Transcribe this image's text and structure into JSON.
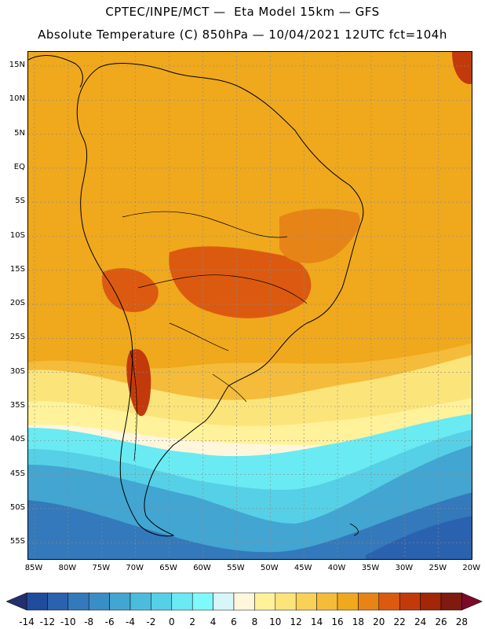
{
  "header": {
    "line1": "CPTEC/INPE/MCT —  Eta Model 15km — GFS",
    "line2": "Absolute Temperature (C) 850hPa — 10/04/2021 12UTC fct=104h"
  },
  "map": {
    "lat_labels": [
      "15N",
      "10N",
      "5N",
      "EQ",
      "5S",
      "10S",
      "15S",
      "20S",
      "25S",
      "30S",
      "35S",
      "40S",
      "45S",
      "50S",
      "55S"
    ],
    "lon_labels": [
      "85W",
      "80W",
      "75W",
      "70W",
      "65W",
      "60W",
      "55W",
      "50W",
      "45W",
      "40W",
      "35W",
      "30W",
      "25W",
      "20W"
    ],
    "lat_range": [
      -58,
      16.5
    ],
    "lon_range": [
      -85.5,
      -19.5
    ]
  },
  "colorbar": {
    "labels": [
      "-14",
      "-12",
      "-10",
      "-8",
      "-6",
      "-4",
      "-2",
      "0",
      "2",
      "4",
      "6",
      "8",
      "10",
      "12",
      "14",
      "16",
      "18",
      "20",
      "22",
      "24",
      "26",
      "28"
    ],
    "colors": [
      "#1a3a8c",
      "#204c9e",
      "#2a62b0",
      "#3379bb",
      "#3a8ec6",
      "#42a5d2",
      "#4cbcdd",
      "#56d0e6",
      "#6aeaf2",
      "#7ffafc",
      "#d6f6fa",
      "#fff6dc",
      "#fff29a",
      "#fbe47a",
      "#f7d158",
      "#f4bc3a",
      "#f0a81c",
      "#e68418",
      "#dc5a10",
      "#c23a0c",
      "#a22608",
      "#7e1a10"
    ],
    "under_color": "#22306e",
    "over_color": "#7a0a2a"
  }
}
